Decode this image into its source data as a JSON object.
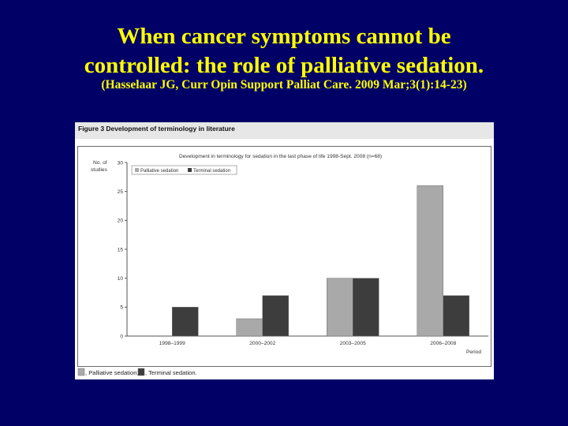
{
  "slide": {
    "title_line1": "When cancer symptoms cannot be",
    "title_line2": "controlled: the role of palliative sedation.",
    "citation": "(Hasselaar JG,  Curr Opin Support Palliat Care. 2009 Mar;3(1):14-23)"
  },
  "figure": {
    "caption": "Figure 3  Development of terminology in literature",
    "footer_legend": [
      {
        "label": ", Palliative sedation;",
        "color": "#a9a9a9"
      },
      {
        "label": ", Terminal sedation.",
        "color": "#3d3d3d"
      }
    ]
  },
  "chart_data": {
    "type": "bar",
    "title": "Development in terminology for sedation in the last phase of life 1998-Sept. 2008 (n=68)",
    "ylabel": "No. of studies",
    "xlabel": "Period",
    "categories": [
      "1998–1999",
      "2000–2002",
      "2003–2005",
      "2006–2008"
    ],
    "series": [
      {
        "name": "Palliative sedation",
        "values": [
          0,
          3,
          10,
          26
        ],
        "color": "#a9a9a9"
      },
      {
        "name": "Terminal sedation",
        "values": [
          5,
          7,
          10,
          7
        ],
        "color": "#3d3d3d"
      }
    ],
    "ylim": [
      0,
      30
    ],
    "yticks": [
      0,
      5,
      10,
      15,
      20,
      25,
      30
    ],
    "grid": false,
    "legend_position": "top-left"
  }
}
